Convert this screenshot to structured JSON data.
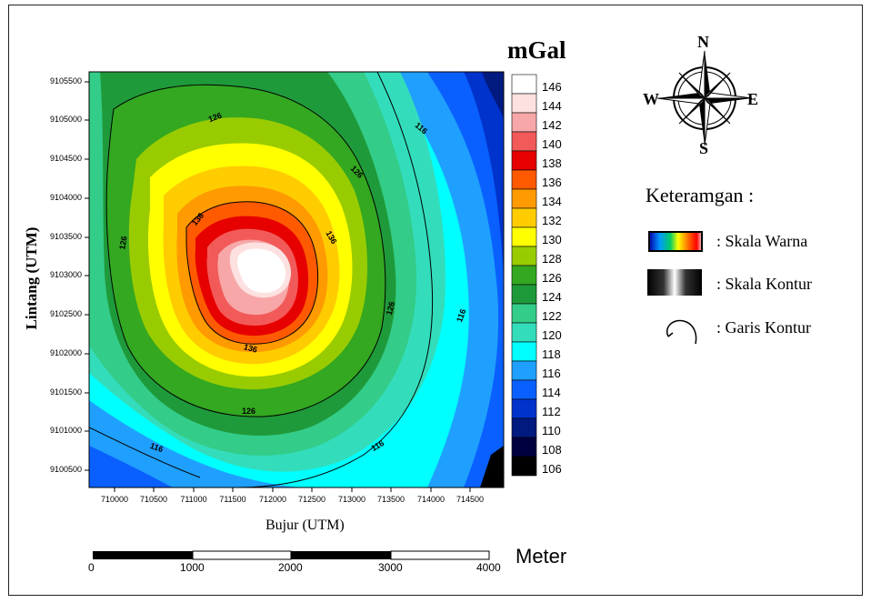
{
  "map": {
    "unit_title": "mGal",
    "xlabel": "Bujur (UTM)",
    "ylabel": "Lintang (UTM)",
    "x_ticks": [
      "710000",
      "710500",
      "711000",
      "711500",
      "712000",
      "712500",
      "713000",
      "713500",
      "714000",
      "714500"
    ],
    "y_ticks": [
      "9105500",
      "9105000",
      "9104500",
      "9104000",
      "9103500",
      "9103000",
      "9102500",
      "9102000",
      "9101500",
      "9101000",
      "9100500"
    ],
    "contour_labels": [
      "126",
      "126",
      "126",
      "126",
      "126",
      "136",
      "136",
      "136",
      "116",
      "116",
      "116",
      "116"
    ]
  },
  "colorbar": {
    "labels": [
      "146",
      "144",
      "142",
      "140",
      "138",
      "136",
      "134",
      "132",
      "130",
      "128",
      "126",
      "124",
      "122",
      "120",
      "118",
      "116",
      "114",
      "112",
      "110",
      "108",
      "106"
    ],
    "colors": [
      "#ffffff",
      "#fde0e0",
      "#f7a7a7",
      "#f25a5a",
      "#e60000",
      "#ff5a00",
      "#ff9a00",
      "#ffcc00",
      "#ffff00",
      "#99cc00",
      "#33a820",
      "#1f9a3a",
      "#33cc88",
      "#33ddbb",
      "#00ffff",
      "#1fa0ff",
      "#0a60ff",
      "#0033cc",
      "#001a80",
      "#000040",
      "#000000"
    ]
  },
  "scalebar": {
    "ticks": [
      "0",
      "1000",
      "2000",
      "3000",
      "4000"
    ],
    "unit": "Meter"
  },
  "compass": {
    "n": "N",
    "s": "S",
    "e": "E",
    "w": "W"
  },
  "legend": {
    "title": "Keteramgan :",
    "items": [
      ": Skala Warna",
      ": Skala Kontur",
      ": Garis Kontur"
    ]
  }
}
